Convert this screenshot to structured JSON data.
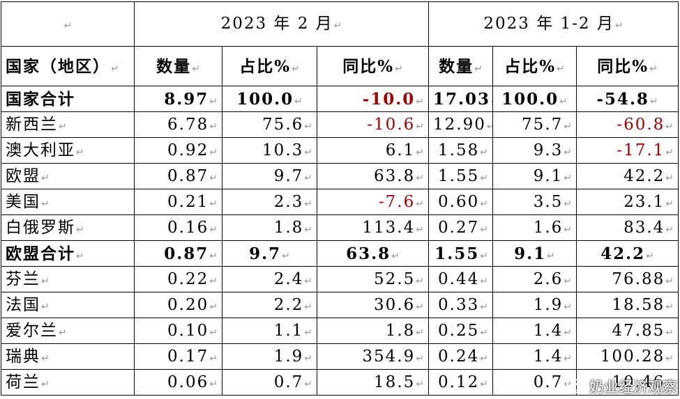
{
  "table": {
    "header_top": {
      "corner": "",
      "group1": "2023 年 2 月",
      "group2": "2023 年 1-2 月"
    },
    "header_cols": {
      "country": "国家（地区）",
      "qty1": "数量",
      "share1": "占比%",
      "yoy1": "同比%",
      "qty2": "数量",
      "share2": "占比%",
      "yoy2": "同比%"
    },
    "rows": [
      {
        "name": "国家合计",
        "qty1": "8.97",
        "share1": "100.0",
        "yoy1": "-10.0",
        "qty2": "17.03",
        "share2": "100.0",
        "yoy2": "-54.8"
      },
      {
        "name": "新西兰",
        "qty1": "6.78",
        "share1": "75.6",
        "yoy1": "-10.6",
        "qty2": "12.90",
        "share2": "75.7",
        "yoy2": "-60.8"
      },
      {
        "name": "澳大利亚",
        "qty1": "0.92",
        "share1": "10.3",
        "yoy1": "6.1",
        "qty2": "1.58",
        "share2": "9.3",
        "yoy2": "-17.1"
      },
      {
        "name": "欧盟",
        "qty1": "0.87",
        "share1": "9.7",
        "yoy1": "63.8",
        "qty2": "1.55",
        "share2": "9.1",
        "yoy2": "42.2"
      },
      {
        "name": "美国",
        "qty1": "0.21",
        "share1": "2.3",
        "yoy1": "-7.6",
        "qty2": "0.60",
        "share2": "3.5",
        "yoy2": "23.1"
      },
      {
        "name": "白俄罗斯",
        "qty1": "0.16",
        "share1": "1.8",
        "yoy1": "113.4",
        "qty2": "0.27",
        "share2": "1.6",
        "yoy2": "83.4"
      },
      {
        "name": "欧盟合计",
        "qty1": "0.87",
        "share1": "9.7",
        "yoy1": "63.8",
        "qty2": "1.55",
        "share2": "9.1",
        "yoy2": "42.2"
      },
      {
        "name": "芬兰",
        "qty1": "0.22",
        "share1": "2.4",
        "yoy1": "52.5",
        "qty2": "0.44",
        "share2": "2.6",
        "yoy2": "76.88"
      },
      {
        "name": "法国",
        "qty1": "0.20",
        "share1": "2.2",
        "yoy1": "30.6",
        "qty2": "0.33",
        "share2": "1.9",
        "yoy2": "18.58"
      },
      {
        "name": "爱尔兰",
        "qty1": "0.10",
        "share1": "1.1",
        "yoy1": "1.8",
        "qty2": "0.25",
        "share2": "1.4",
        "yoy2": "47.85"
      },
      {
        "name": "瑞典",
        "qty1": "0.17",
        "share1": "1.9",
        "yoy1": "354.9",
        "qty2": "0.24",
        "share2": "1.4",
        "yoy2": "100.28"
      },
      {
        "name": "荷兰",
        "qty1": "0.06",
        "share1": "0.7",
        "yoy1": "18.5",
        "qty2": "0.12",
        "share2": "0.7",
        "yoy2": "10.46"
      }
    ]
  },
  "watermark": {
    "text": "奶业经济观察",
    "icon": "wechat-icon"
  },
  "colors": {
    "negative": "#a40000",
    "grid": "#000000"
  }
}
